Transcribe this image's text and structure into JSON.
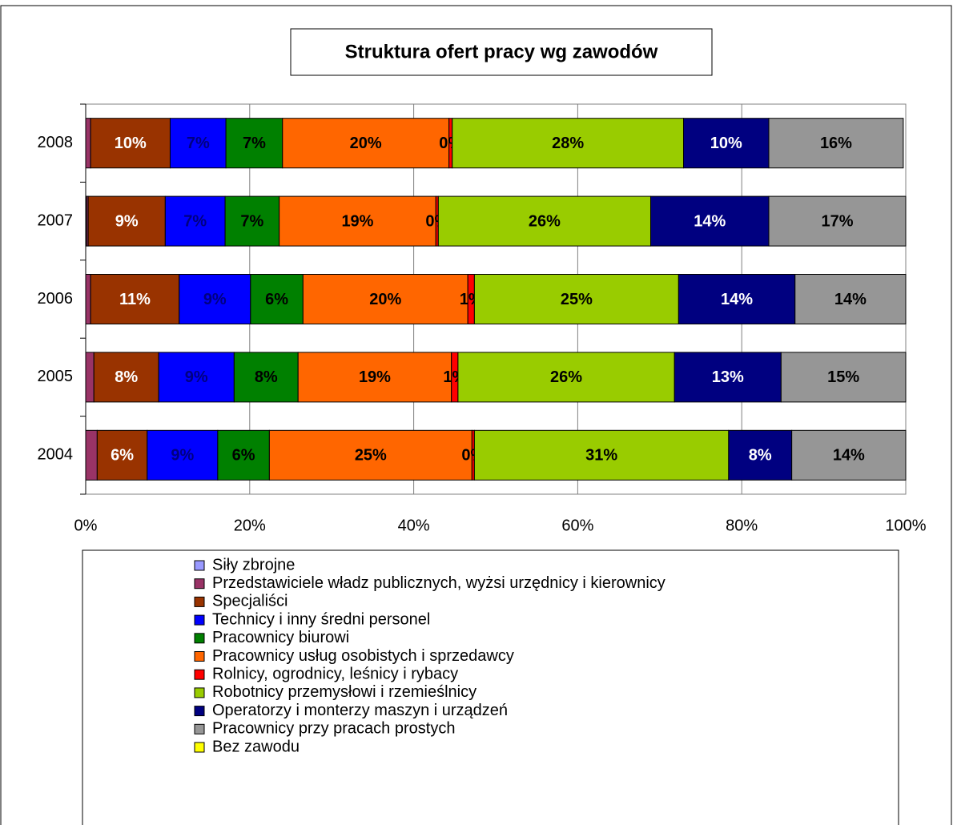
{
  "chart_data": {
    "type": "stacked-barh",
    "title": "Struktura ofert pracy wg zawodów",
    "categories": [
      "2004",
      "2005",
      "2006",
      "2007",
      "2008"
    ],
    "xlim": [
      0,
      100
    ],
    "xticks": [
      {
        "value": 0,
        "label": "0%"
      },
      {
        "value": 20,
        "label": "20%"
      },
      {
        "value": 40,
        "label": "40%"
      },
      {
        "value": 60,
        "label": "60%"
      },
      {
        "value": 80,
        "label": "80%"
      },
      {
        "value": 100,
        "label": "100%"
      }
    ],
    "grid": true,
    "legend": "bottom",
    "series": [
      {
        "name": "Siły zbrojne",
        "color": "#9999ff",
        "values": [
          0,
          0,
          0,
          0.1,
          0
        ]
      },
      {
        "name": "Przedstawiciele władz publicznych, wyżsi urzędnicy i kierownicy",
        "color": "#993366",
        "values": [
          1.4,
          1.0,
          0.6,
          0.2,
          0.6
        ]
      },
      {
        "name": "Specjaliści",
        "color": "#993300",
        "label_color": "#ffffff",
        "values": [
          6.1,
          7.9,
          10.8,
          9.4,
          9.7
        ],
        "value_labels": [
          "6%",
          "8%",
          "11%",
          "9%",
          "10%"
        ]
      },
      {
        "name": "Technicy i inny średni personel",
        "color": "#0000ff",
        "label_color": "#000080",
        "values": [
          8.6,
          9.2,
          8.7,
          7.3,
          6.8
        ],
        "value_labels": [
          "9%",
          "9%",
          "9%",
          "7%",
          "7%"
        ]
      },
      {
        "name": "Pracownicy biurowi",
        "color": "#008000",
        "label_color": "#000000",
        "values": [
          6.3,
          7.8,
          6.4,
          6.6,
          6.9
        ],
        "value_labels": [
          "6%",
          "8%",
          "6%",
          "7%",
          "7%"
        ]
      },
      {
        "name": "Pracownicy usług osobistych i sprzedawcy",
        "color": "#ff6600",
        "label_color": "#000000",
        "values": [
          24.7,
          18.7,
          20.1,
          19.1,
          20.3
        ],
        "value_labels": [
          "25%",
          "19%",
          "20%",
          "19%",
          "20%"
        ]
      },
      {
        "name": "Rolnicy, ogrodnicy, leśnicy i rybacy",
        "color": "#ff0000",
        "label_color": "#000000",
        "values": [
          0.3,
          0.8,
          0.8,
          0.3,
          0.4
        ],
        "value_labels": [
          "0%",
          "1%",
          "1%",
          "0%",
          "0%"
        ]
      },
      {
        "name": "Robotnicy przemysłowi i rzemieślnicy",
        "color": "#99cc00",
        "label_color": "#000000",
        "values": [
          31.0,
          26.4,
          24.9,
          25.9,
          28.2
        ],
        "value_labels": [
          "31%",
          "26%",
          "25%",
          "26%",
          "28%"
        ]
      },
      {
        "name": "Operatorzy i monterzy maszyn i urządzeń",
        "color": "#000080",
        "label_color": "#ffffff",
        "values": [
          7.7,
          13.0,
          14.2,
          14.4,
          10.4
        ],
        "value_labels": [
          "8%",
          "13%",
          "14%",
          "14%",
          "10%"
        ]
      },
      {
        "name": "Pracownicy przy pracach prostych",
        "color": "#969696",
        "label_color": "#000000",
        "values": [
          13.9,
          15.2,
          13.5,
          16.7,
          16.4
        ],
        "value_labels": [
          "14%",
          "15%",
          "14%",
          "17%",
          "16%"
        ]
      },
      {
        "name": "Bez zawodu",
        "color": "#ffff00",
        "values": [
          0,
          0,
          0,
          0,
          0
        ]
      }
    ]
  }
}
